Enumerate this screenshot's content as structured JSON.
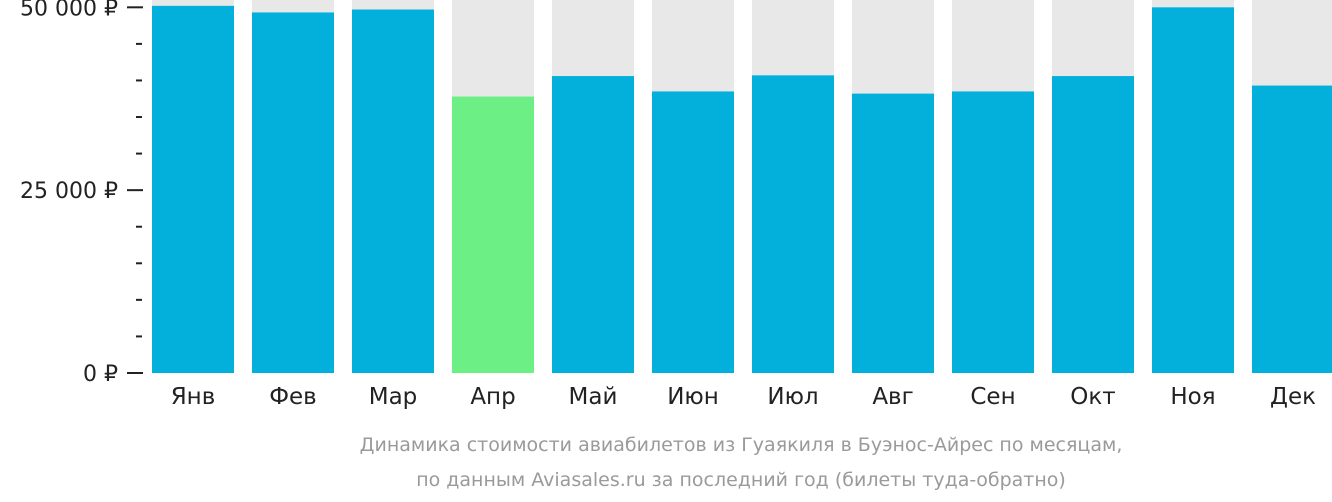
{
  "chart_data": {
    "type": "bar",
    "categories": [
      "Янв",
      "Фев",
      "Мар",
      "Апр",
      "Май",
      "Июн",
      "Июл",
      "Авг",
      "Сен",
      "Окт",
      "Ноя",
      "Дек"
    ],
    "values": [
      50200,
      49300,
      49700,
      37800,
      40600,
      38500,
      40700,
      38200,
      38500,
      40600,
      50000,
      39300
    ],
    "ylim": [
      0,
      51000
    ],
    "yticks": [
      {
        "value": 50000,
        "label": "50 000 ₽"
      },
      {
        "value": 25000,
        "label": "25 000 ₽"
      },
      {
        "value": 0,
        "label": "0 ₽"
      }
    ],
    "minor_tick_step": 5000,
    "highlight_index": 3,
    "colors": {
      "bar": "#03b0dc",
      "highlight": "#6cf085",
      "background_column": "#e8e8e8",
      "axis": "#222222",
      "caption": "#9a9a9a"
    },
    "caption_lines": [
      "Динамика стоимости авиабилетов из Гуаякиля в Буэнос-Айрес по месяцам,",
      "по данным Aviasales.ru за последний год (билеты туда-обратно)"
    ]
  }
}
